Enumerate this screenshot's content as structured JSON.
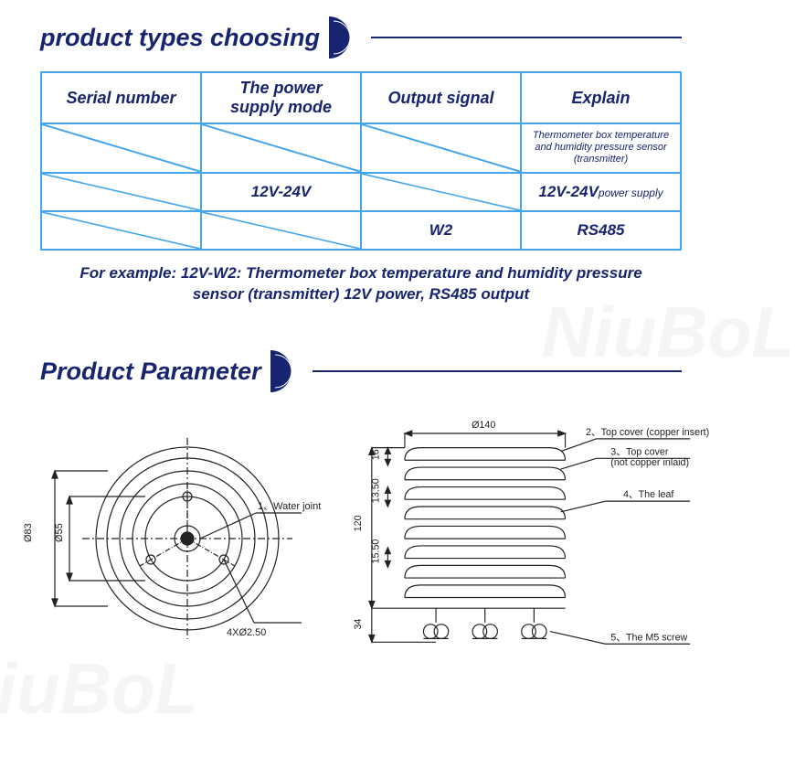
{
  "section1": {
    "title": "product types choosing"
  },
  "table": {
    "headers": [
      "Serial number",
      "The power\nsupply mode",
      "Output signal",
      "Explain"
    ],
    "rows": [
      {
        "c0": {
          "slash": true
        },
        "c1": {
          "slash": true
        },
        "c2": {
          "slash": true
        },
        "c3": {
          "text": "Thermometer box temperature and humidity pressure sensor (transmitter)",
          "small": true
        }
      },
      {
        "c0": {
          "slash": true
        },
        "c1": {
          "text": "12V-24V"
        },
        "c2": {
          "slash": true
        },
        "c3": {
          "mixed": {
            "big": "12V-24V",
            "sm": "power supply"
          }
        }
      },
      {
        "c0": {
          "slash": true
        },
        "c1": {
          "slash": true
        },
        "c2": {
          "text": "W2"
        },
        "c3": {
          "text": "RS485"
        }
      }
    ],
    "example": "For example: 12V-W2: Thermometer box temperature and humidity pressure sensor (transmitter) 12V power, RS485 output"
  },
  "section2": {
    "title": "Product Parameter"
  },
  "diagram_left": {
    "outer_dia_label": "Ø83",
    "inner_dia_label": "Ø55",
    "hole_label": "4XØ2.50",
    "callout1": "1、Water joint"
  },
  "diagram_right": {
    "width_label": "Ø140",
    "h_total": "120",
    "h_top": "16",
    "h_gap1": "13.50",
    "h_gap2": "15.50",
    "h_base": "34",
    "callout2": "2、Top cover (copper insert)",
    "callout3": "3、Top cover\n(not copper inlaid)",
    "callout4": "4、The leaf",
    "callout5": "5、The M5 screw"
  },
  "colors": {
    "primary": "#17246f",
    "border": "#45a6f0",
    "stroke": "#222222"
  },
  "watermark": "NiuBoL"
}
